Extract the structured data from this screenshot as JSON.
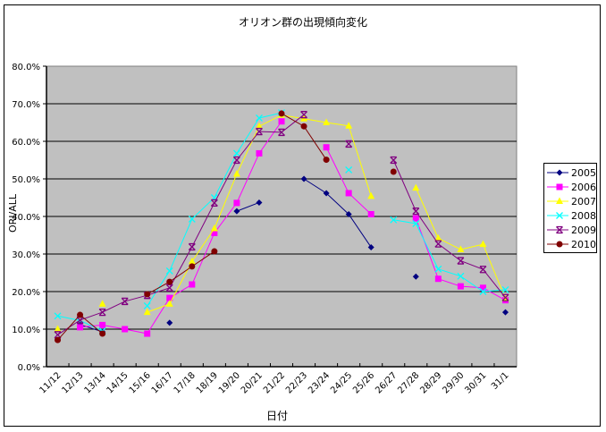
{
  "chart_data": {
    "type": "line",
    "title": "オリオン群の出現傾向変化",
    "xlabel": "日付",
    "ylabel": "ORI/ALL",
    "ylim": [
      0,
      80
    ],
    "y_ticks": [
      "0.0%",
      "10.0%",
      "20.0%",
      "30.0%",
      "40.0%",
      "50.0%",
      "60.0%",
      "70.0%",
      "80.0%"
    ],
    "grid": true,
    "plot_background": "#c0c0c0",
    "legend_position": "right",
    "categories": [
      "11/12",
      "12/13",
      "13/14",
      "14/15",
      "15/16",
      "16/17",
      "17/18",
      "18/19",
      "19/20",
      "20/21",
      "21/22",
      "22/23",
      "23/24",
      "24/25",
      "25/26",
      "26/27",
      "27/28",
      "28/29",
      "29/30",
      "30/31",
      "31/1"
    ],
    "series": [
      {
        "name": "2005",
        "color": "#000080",
        "marker": "diamond",
        "values": [
          null,
          11.2,
          9.3,
          null,
          null,
          11.7,
          null,
          null,
          41.4,
          43.7,
          null,
          50.0,
          46.2,
          40.6,
          31.8,
          null,
          24.0,
          null,
          null,
          null,
          14.5
        ]
      },
      {
        "name": "2006",
        "color": "#ff00ff",
        "marker": "square",
        "values": [
          null,
          10.5,
          11.1,
          10.0,
          8.8,
          18.3,
          21.9,
          35.6,
          43.6,
          56.8,
          65.3,
          null,
          58.4,
          46.2,
          40.6,
          null,
          39.5,
          23.4,
          21.4,
          21.0,
          17.7
        ]
      },
      {
        "name": "2007",
        "color": "#ffff00",
        "marker": "triangle",
        "values": [
          10.0,
          null,
          16.7,
          null,
          14.5,
          16.7,
          28.0,
          36.8,
          51.3,
          64.0,
          67.0,
          66.0,
          65.0,
          64.1,
          45.4,
          null,
          47.6,
          34.2,
          31.2,
          32.6,
          18.1
        ]
      },
      {
        "name": "2008",
        "color": "#00ffff",
        "marker": "x",
        "values": [
          13.5,
          12.3,
          9.5,
          null,
          16.2,
          25.5,
          39.3,
          45.0,
          56.8,
          66.2,
          67.6,
          null,
          null,
          52.4,
          null,
          39.1,
          38.1,
          26.0,
          24.1,
          20.0,
          20.5
        ]
      },
      {
        "name": "2009",
        "color": "#800080",
        "marker": "star",
        "values": [
          8.5,
          12.4,
          14.5,
          17.4,
          19.0,
          21.0,
          31.9,
          43.6,
          55.0,
          62.6,
          62.4,
          67.1,
          null,
          59.3,
          null,
          55.0,
          41.4,
          32.7,
          28.2,
          25.9,
          18.4
        ]
      },
      {
        "name": "2010",
        "color": "#800000",
        "marker": "circle",
        "values": [
          7.1,
          13.8,
          8.8,
          null,
          19.3,
          22.6,
          26.7,
          30.7,
          null,
          null,
          67.4,
          64.0,
          55.1,
          null,
          null,
          51.9,
          null,
          null,
          null,
          null,
          null
        ]
      }
    ]
  }
}
